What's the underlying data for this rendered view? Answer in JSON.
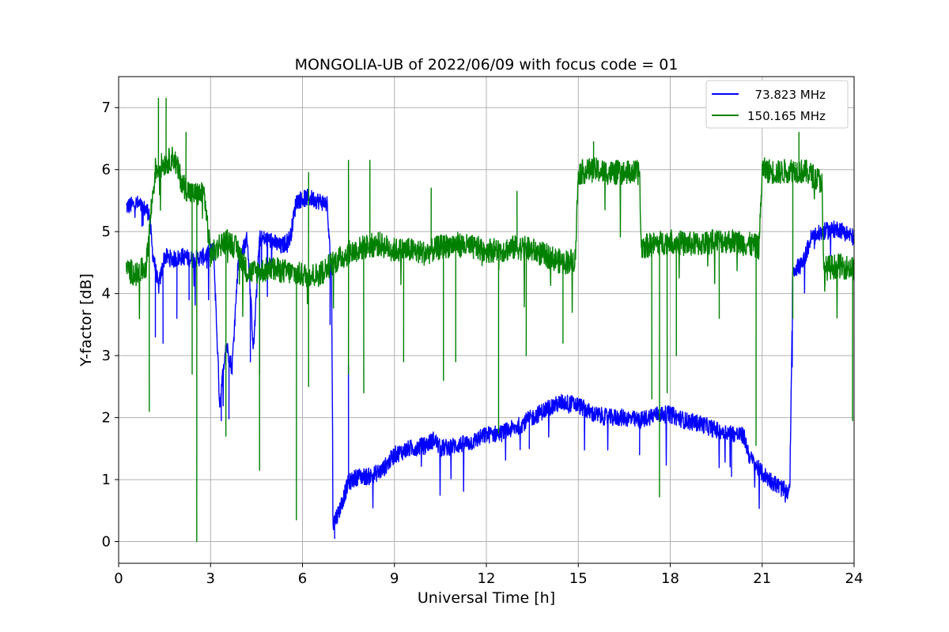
{
  "chart_data": {
    "type": "line",
    "title": "MONGOLIA-UB of 2022/06/09 with focus code = 01",
    "xlabel": "Universal Time [h]",
    "ylabel": "Y-factor [dB]",
    "xlim": [
      0,
      24
    ],
    "ylim": [
      -0.35,
      7.5
    ],
    "xticks": [
      0,
      3,
      6,
      9,
      12,
      15,
      18,
      21,
      24
    ],
    "yticks": [
      0,
      1,
      2,
      3,
      4,
      5,
      6,
      7
    ],
    "grid": true,
    "legend_position": "top-right",
    "series": [
      {
        "name": "  73.823 MHz",
        "color": "#0000ff",
        "points": [
          [
            0.25,
            5.4
          ],
          [
            0.6,
            5.45
          ],
          [
            0.9,
            5.35
          ],
          [
            1.0,
            5.3
          ],
          [
            1.1,
            4.7
          ],
          [
            1.3,
            4.1
          ],
          [
            1.5,
            4.6
          ],
          [
            1.8,
            4.55
          ],
          [
            2.1,
            4.6
          ],
          [
            2.4,
            4.55
          ],
          [
            2.8,
            4.6
          ],
          [
            3.1,
            4.7
          ],
          [
            3.3,
            2.2
          ],
          [
            3.5,
            3.2
          ],
          [
            3.7,
            2.8
          ],
          [
            3.9,
            4.5
          ],
          [
            4.2,
            4.9
          ],
          [
            4.4,
            3.1
          ],
          [
            4.6,
            4.9
          ],
          [
            5.0,
            4.85
          ],
          [
            5.3,
            4.75
          ],
          [
            5.6,
            4.9
          ],
          [
            5.8,
            5.5
          ],
          [
            6.2,
            5.55
          ],
          [
            6.5,
            5.5
          ],
          [
            6.8,
            5.45
          ],
          [
            6.95,
            4.2
          ],
          [
            7.0,
            0.3
          ],
          [
            7.2,
            0.5
          ],
          [
            7.5,
            0.95
          ],
          [
            7.8,
            1.05
          ],
          [
            8.2,
            1.05
          ],
          [
            8.6,
            1.15
          ],
          [
            9.0,
            1.4
          ],
          [
            9.5,
            1.5
          ],
          [
            10.0,
            1.55
          ],
          [
            10.3,
            1.65
          ],
          [
            10.5,
            1.5
          ],
          [
            11.0,
            1.55
          ],
          [
            11.5,
            1.6
          ],
          [
            12.0,
            1.72
          ],
          [
            12.5,
            1.75
          ],
          [
            13.0,
            1.85
          ],
          [
            13.5,
            2.0
          ],
          [
            14.0,
            2.15
          ],
          [
            14.5,
            2.25
          ],
          [
            15.0,
            2.2
          ],
          [
            15.5,
            2.05
          ],
          [
            16.0,
            2.0
          ],
          [
            16.5,
            2.0
          ],
          [
            17.0,
            1.95
          ],
          [
            17.5,
            2.05
          ],
          [
            18.0,
            2.05
          ],
          [
            18.5,
            1.95
          ],
          [
            19.0,
            1.9
          ],
          [
            19.5,
            1.8
          ],
          [
            20.0,
            1.75
          ],
          [
            20.4,
            1.7
          ],
          [
            20.6,
            1.35
          ],
          [
            21.0,
            1.1
          ],
          [
            21.5,
            0.9
          ],
          [
            21.9,
            0.78
          ],
          [
            22.0,
            4.4
          ],
          [
            22.3,
            4.45
          ],
          [
            22.6,
            4.9
          ],
          [
            23.0,
            5.0
          ],
          [
            23.5,
            5.05
          ],
          [
            24.0,
            4.9
          ]
        ],
        "spikes": [
          [
            1.2,
            3.3
          ],
          [
            1.45,
            3.2
          ],
          [
            1.9,
            3.6
          ],
          [
            2.3,
            3.9
          ],
          [
            3.35,
            1.95
          ],
          [
            3.6,
            1.98
          ],
          [
            4.3,
            2.9
          ],
          [
            4.6,
            2.7
          ],
          [
            6.9,
            3.5
          ],
          [
            7.05,
            0.05
          ],
          [
            7.5,
            2.85
          ],
          [
            13.4,
            1.5
          ],
          [
            17.0,
            1.4
          ],
          [
            20.0,
            1.05
          ]
        ]
      },
      {
        "name": "150.165 MHz",
        "color": "#008000",
        "points": [
          [
            0.25,
            4.4
          ],
          [
            0.6,
            4.3
          ],
          [
            0.9,
            4.45
          ],
          [
            1.05,
            5.3
          ],
          [
            1.2,
            6.0
          ],
          [
            1.5,
            6.1
          ],
          [
            1.8,
            6.2
          ],
          [
            2.1,
            5.75
          ],
          [
            2.4,
            5.6
          ],
          [
            2.8,
            5.6
          ],
          [
            3.0,
            4.6
          ],
          [
            3.3,
            4.8
          ],
          [
            3.6,
            4.85
          ],
          [
            3.9,
            4.7
          ],
          [
            4.2,
            4.35
          ],
          [
            4.5,
            4.35
          ],
          [
            5.0,
            4.4
          ],
          [
            5.5,
            4.35
          ],
          [
            6.0,
            4.3
          ],
          [
            6.5,
            4.3
          ],
          [
            7.0,
            4.5
          ],
          [
            7.5,
            4.65
          ],
          [
            8.0,
            4.75
          ],
          [
            8.5,
            4.8
          ],
          [
            9.0,
            4.7
          ],
          [
            9.5,
            4.7
          ],
          [
            10.0,
            4.65
          ],
          [
            10.5,
            4.75
          ],
          [
            11.0,
            4.8
          ],
          [
            11.5,
            4.75
          ],
          [
            12.0,
            4.7
          ],
          [
            12.5,
            4.7
          ],
          [
            13.0,
            4.75
          ],
          [
            13.5,
            4.7
          ],
          [
            14.0,
            4.6
          ],
          [
            14.5,
            4.5
          ],
          [
            14.9,
            4.55
          ],
          [
            15.0,
            5.95
          ],
          [
            15.5,
            6.0
          ],
          [
            16.0,
            5.95
          ],
          [
            16.5,
            5.95
          ],
          [
            17.0,
            5.95
          ],
          [
            17.05,
            4.75
          ],
          [
            17.5,
            4.8
          ],
          [
            18.0,
            4.85
          ],
          [
            18.5,
            4.8
          ],
          [
            19.0,
            4.8
          ],
          [
            19.5,
            4.85
          ],
          [
            20.0,
            4.85
          ],
          [
            20.5,
            4.8
          ],
          [
            20.9,
            4.75
          ],
          [
            21.0,
            6.0
          ],
          [
            21.5,
            5.95
          ],
          [
            22.0,
            6.0
          ],
          [
            22.5,
            5.95
          ],
          [
            22.95,
            5.8
          ],
          [
            23.0,
            4.4
          ],
          [
            23.5,
            4.45
          ],
          [
            24.0,
            4.4
          ]
        ],
        "spikes": [
          [
            1.0,
            2.1
          ],
          [
            2.55,
            0.0
          ],
          [
            2.4,
            2.7
          ],
          [
            3.5,
            1.7
          ],
          [
            4.6,
            1.15
          ],
          [
            5.8,
            0.35
          ],
          [
            6.2,
            2.5
          ],
          [
            7.5,
            2.7
          ],
          [
            8.0,
            2.4
          ],
          [
            9.3,
            2.9
          ],
          [
            10.6,
            2.6
          ],
          [
            11.0,
            2.9
          ],
          [
            12.4,
            1.75
          ],
          [
            13.3,
            3.0
          ],
          [
            14.5,
            3.2
          ],
          [
            17.4,
            2.3
          ],
          [
            17.65,
            0.72
          ],
          [
            17.9,
            2.4
          ],
          [
            18.2,
            3.0
          ],
          [
            19.6,
            3.6
          ],
          [
            20.8,
            1.55
          ],
          [
            22.0,
            3.6
          ],
          [
            23.95,
            1.95
          ]
        ],
        "peaks": [
          [
            1.3,
            7.15
          ],
          [
            1.55,
            7.15
          ],
          [
            2.2,
            6.6
          ],
          [
            6.2,
            5.95
          ],
          [
            7.5,
            6.15
          ],
          [
            8.2,
            6.15
          ],
          [
            10.2,
            5.7
          ],
          [
            13.0,
            5.65
          ],
          [
            15.5,
            6.45
          ],
          [
            22.2,
            6.6
          ]
        ]
      }
    ]
  }
}
